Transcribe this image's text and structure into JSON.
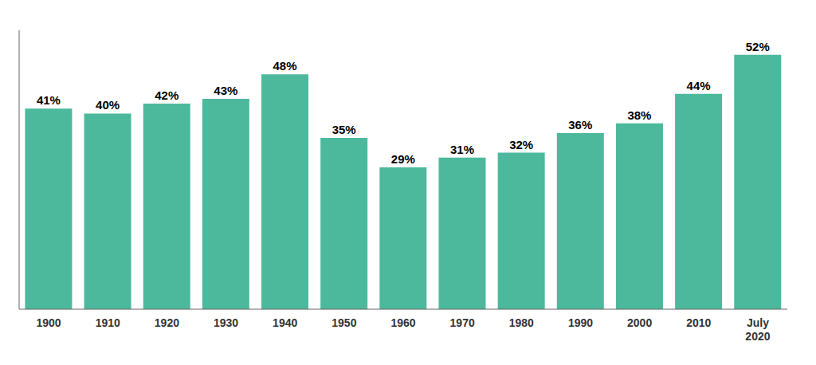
{
  "chart_data": {
    "type": "bar",
    "categories": [
      "1900",
      "1910",
      "1920",
      "1930",
      "1940",
      "1950",
      "1960",
      "1970",
      "1980",
      "1990",
      "2000",
      "2010",
      "July\n2020"
    ],
    "values": [
      41,
      40,
      42,
      43,
      48,
      35,
      29,
      31,
      32,
      36,
      38,
      44,
      52
    ],
    "value_labels": [
      "41%",
      "40%",
      "42%",
      "43%",
      "48%",
      "35%",
      "29%",
      "31%",
      "32%",
      "36%",
      "38%",
      "44%",
      "52%"
    ],
    "color": "#4cb99d",
    "ylim": [
      0,
      57
    ],
    "yticks": [
      0,
      10,
      20,
      30,
      40,
      50
    ],
    "grid": true,
    "data_labels": true,
    "tick_labels": "x"
  }
}
